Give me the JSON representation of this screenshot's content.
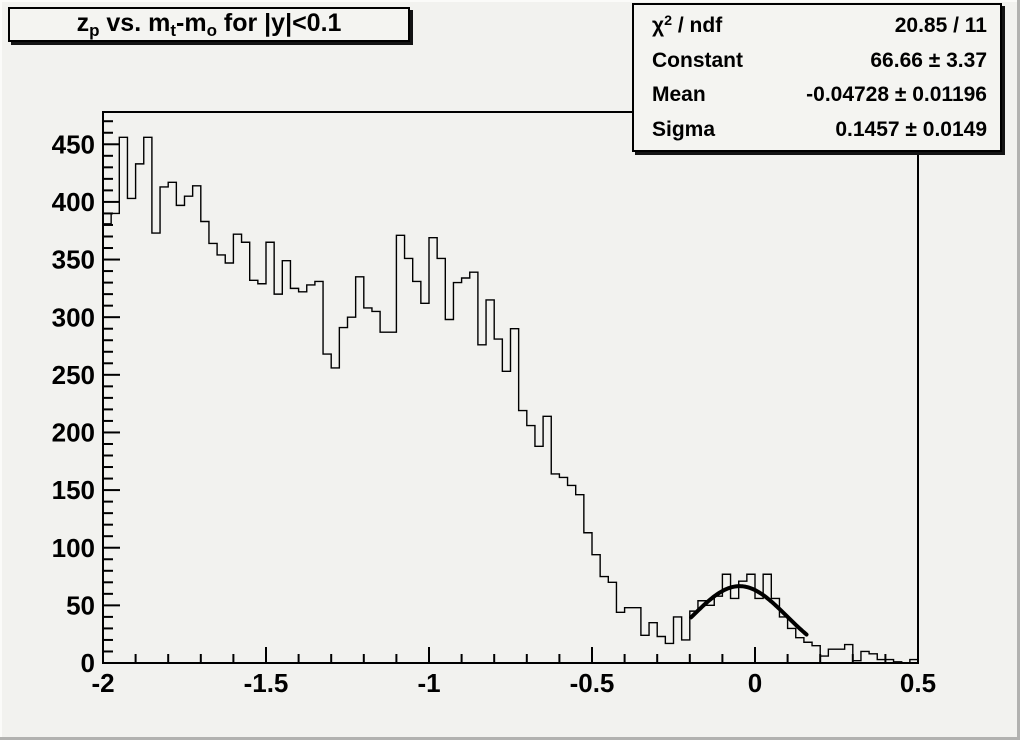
{
  "colors": {
    "background": "#f2f2ef",
    "foreground": "#000000",
    "pave_background": "#f4f4f1",
    "histogram_line": "#000000",
    "fit_curve": "#000000"
  },
  "title": {
    "text": "z_p vs. m_t-m_o for |y|<0.1",
    "parts": [
      {
        "t": "z"
      },
      {
        "sub": "p"
      },
      {
        "t": " vs. m"
      },
      {
        "sub": "t"
      },
      {
        "t": "-m"
      },
      {
        "sub": "o"
      },
      {
        "t": " for |y|<0.1"
      }
    ]
  },
  "stats": {
    "rows": [
      {
        "label_parts": [
          {
            "t": "χ"
          },
          {
            "sup": "2"
          },
          {
            "t": " / ndf"
          }
        ],
        "value": "20.85 / 11"
      },
      {
        "label_parts": [
          {
            "t": "Constant"
          }
        ],
        "value": "66.66 ± 3.37"
      },
      {
        "label_parts": [
          {
            "t": "Mean"
          }
        ],
        "value": "-0.04728 ± 0.01196"
      },
      {
        "label_parts": [
          {
            "t": "Sigma"
          }
        ],
        "value": "0.1457 ± 0.0149"
      }
    ]
  },
  "chart_data": {
    "type": "bar",
    "style": "step-histogram",
    "title": "z_p vs. m_t-m_o for |y|<0.1",
    "xlabel": "",
    "ylabel": "",
    "xlim": [
      -2,
      0.5
    ],
    "ylim": [
      0,
      478
    ],
    "grid": false,
    "n_bins": 100,
    "bin_start_x": -2,
    "bin_width": 0.025,
    "bins": [
      381,
      390,
      456,
      403,
      433,
      456,
      373,
      413,
      417,
      397,
      405,
      414,
      383,
      364,
      354,
      347,
      372,
      365,
      332,
      329,
      365,
      320,
      349,
      325,
      322,
      328,
      331,
      268,
      256,
      291,
      300,
      335,
      308,
      305,
      287,
      287,
      371,
      351,
      331,
      312,
      369,
      351,
      298,
      330,
      334,
      339,
      276,
      315,
      281,
      253,
      290,
      219,
      206,
      188,
      214,
      164,
      161,
      154,
      146,
      113,
      94,
      75,
      70,
      44,
      48,
      48,
      24,
      35,
      23,
      17,
      40,
      20,
      45,
      54,
      50,
      58,
      77,
      56,
      71,
      77,
      56,
      77,
      56,
      40,
      30,
      22,
      18,
      15,
      6,
      12,
      12,
      16,
      2,
      10,
      8,
      3,
      3,
      1,
      0,
      3
    ],
    "x_major_ticks": [
      -2,
      -1.5,
      -1,
      -0.5,
      0,
      0.5
    ],
    "x_tick_labels": [
      "-2",
      "-1.5",
      "-1",
      "-0.5",
      "0",
      "0.5"
    ],
    "x_minor_step": 0.1,
    "y_major_ticks": [
      0,
      50,
      100,
      150,
      200,
      250,
      300,
      350,
      400,
      450
    ],
    "y_tick_labels": [
      "0",
      "50",
      "100",
      "150",
      "200",
      "250",
      "300",
      "350",
      "400",
      "450"
    ],
    "y_minor_step": 10,
    "fit": {
      "type": "gaussian",
      "constant": 66.66,
      "constant_error": 3.37,
      "mean": -0.04728,
      "mean_error": 0.01196,
      "sigma": 0.1457,
      "sigma_error": 0.0149,
      "chi2": 20.85,
      "ndf": 11,
      "draw_range": [
        -0.196,
        0.158
      ]
    }
  }
}
